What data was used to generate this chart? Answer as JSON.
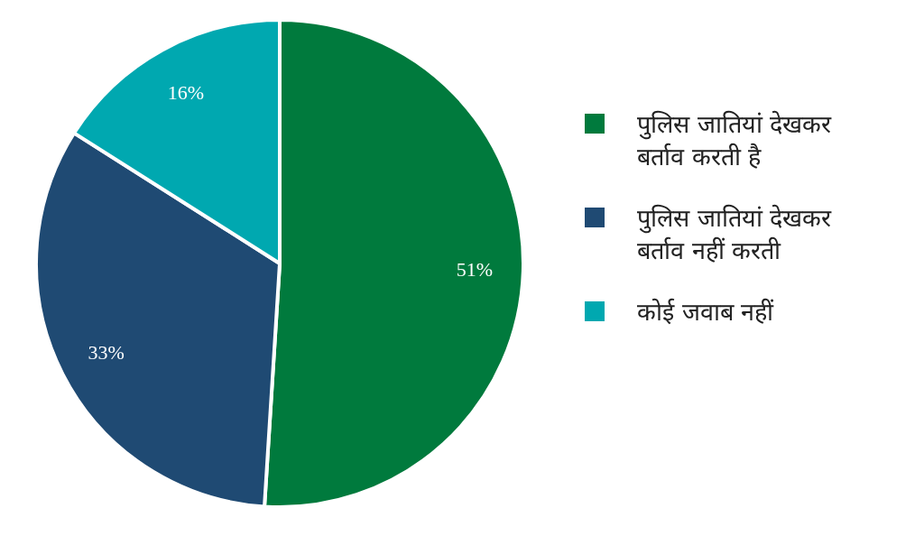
{
  "chart_data": {
    "type": "pie",
    "categories": [
      "पुलिस जातियां देखकर बर्ताव करती है",
      "पुलिस जातियां देखकर बर्ताव नहीं करती",
      "कोई जवाब नहीं"
    ],
    "values": [
      51,
      33,
      16
    ],
    "value_labels": [
      "51%",
      "33%",
      "16%"
    ],
    "colors": [
      "#007a3d",
      "#1f4a73",
      "#00a8b0"
    ],
    "legend": "right"
  }
}
